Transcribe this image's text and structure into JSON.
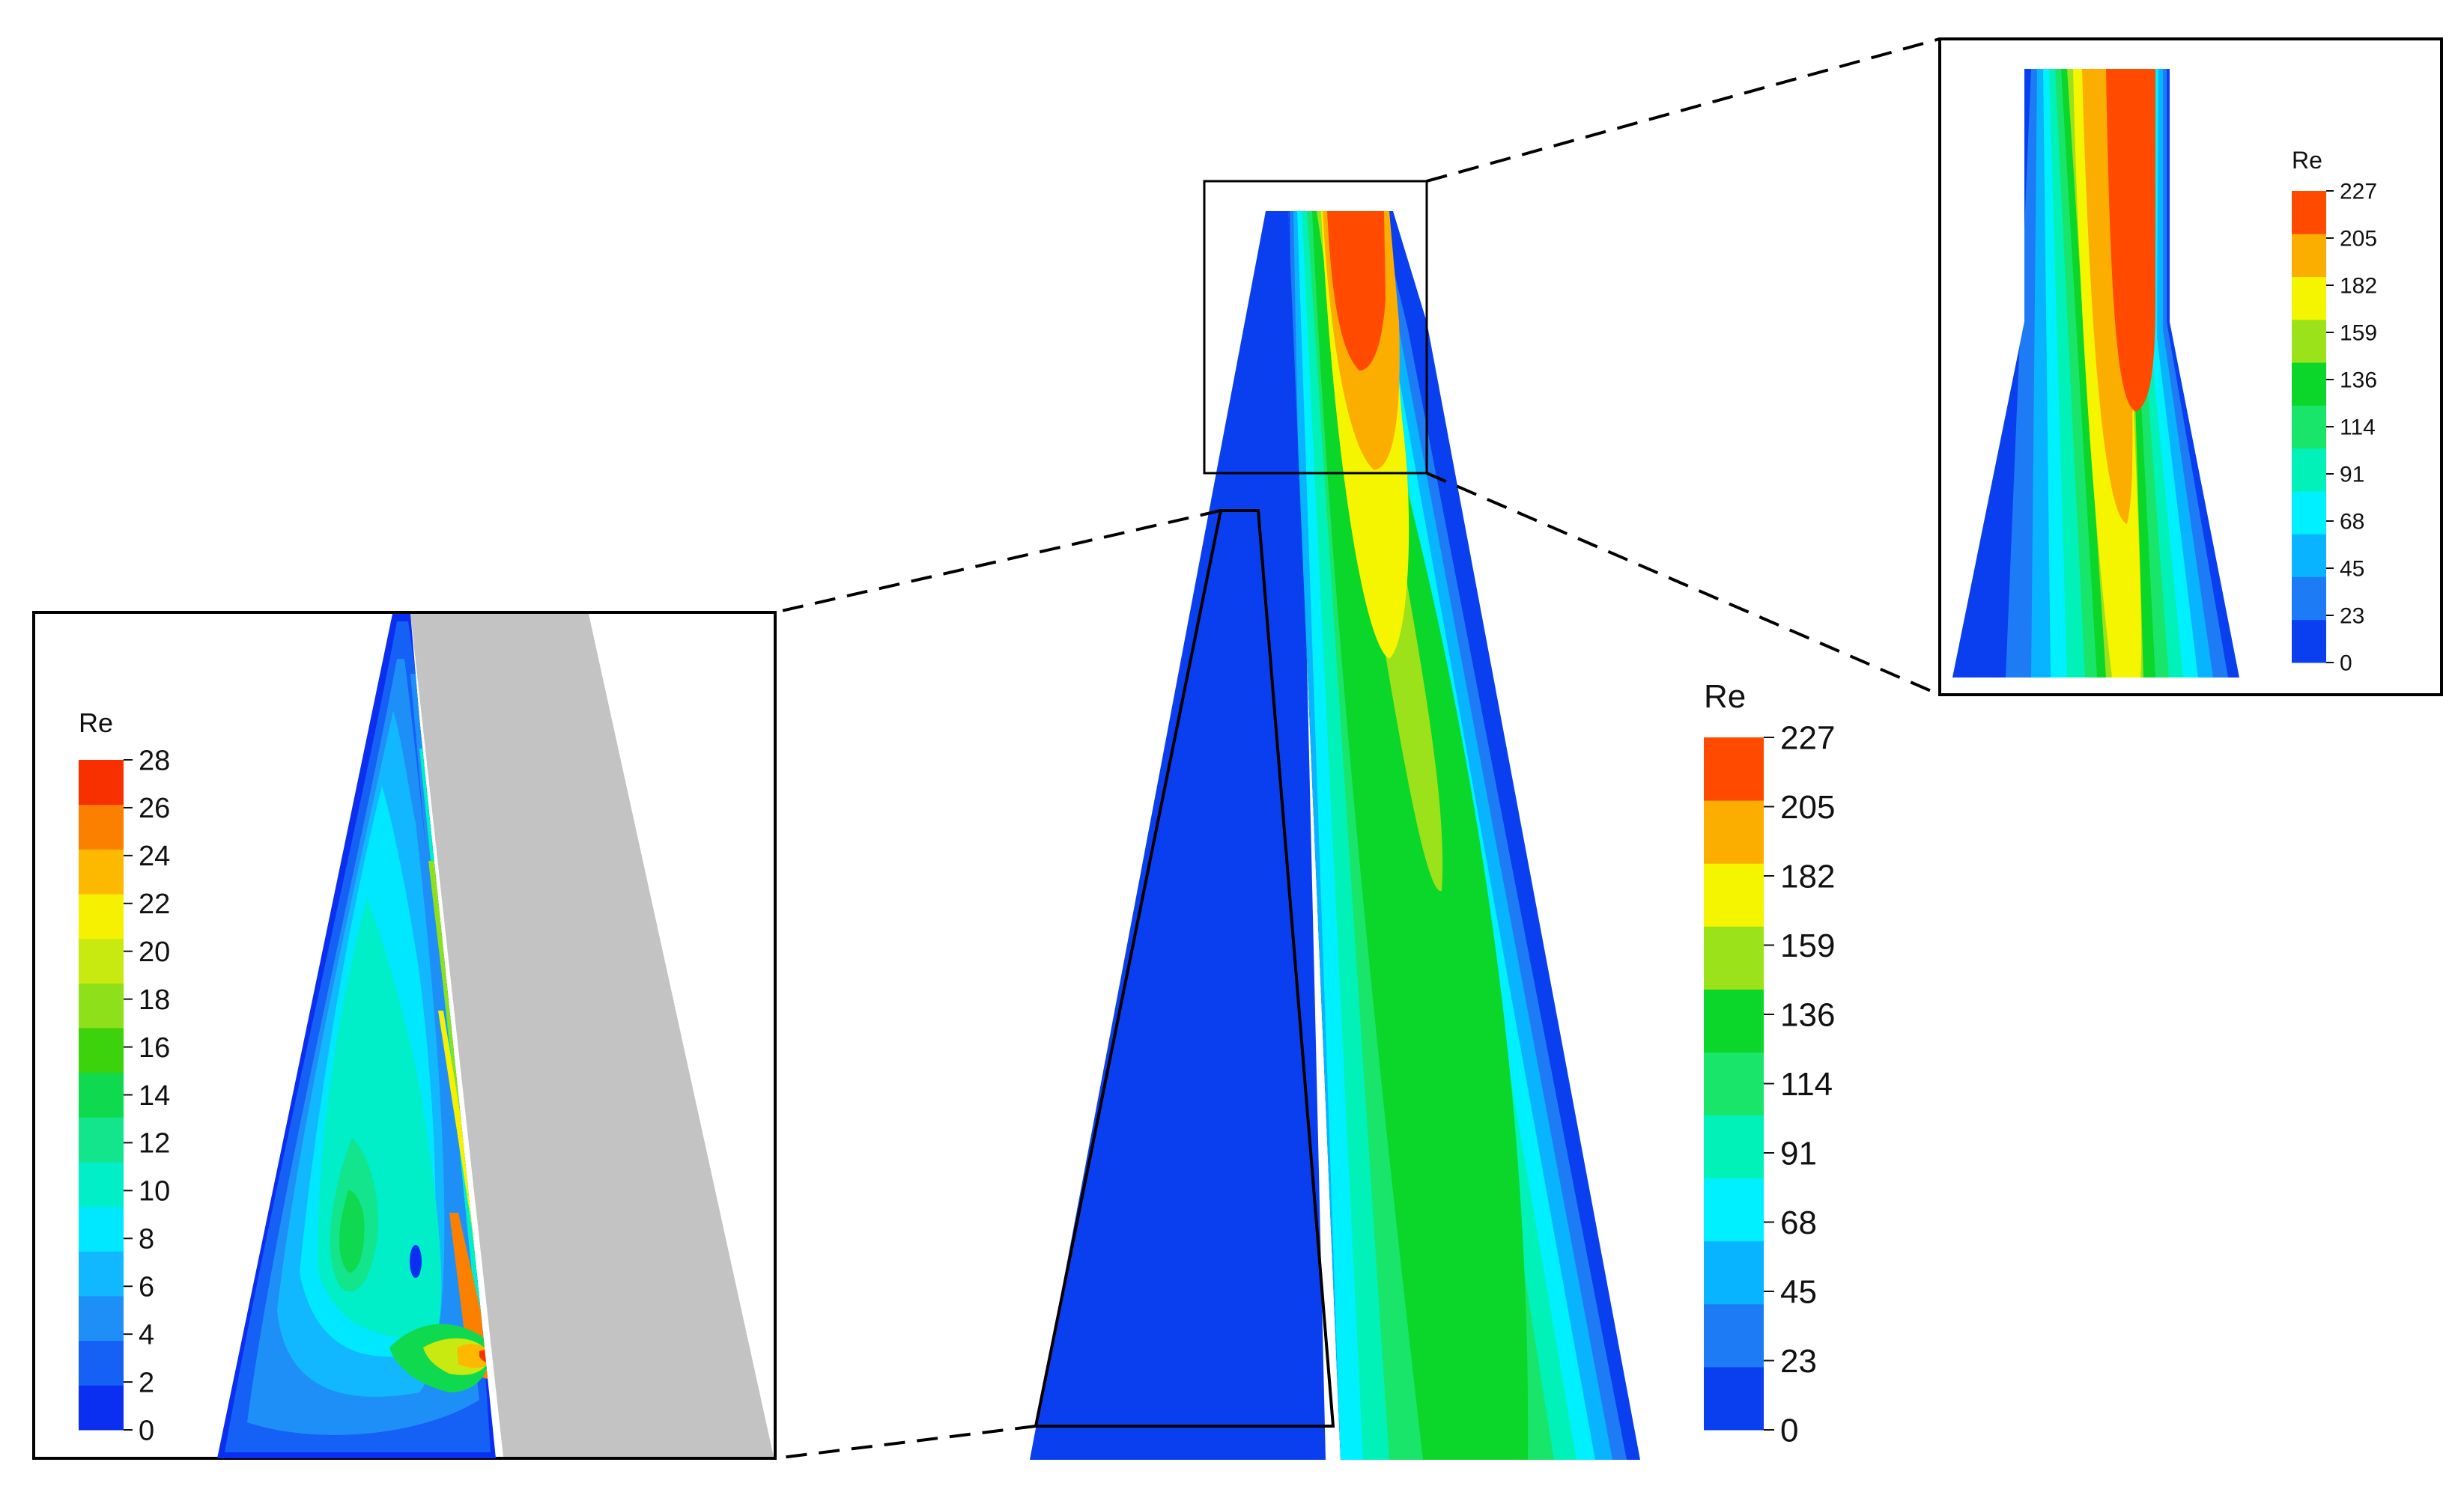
{
  "figure": {
    "variable_label": "Re",
    "main_legend": {
      "title": "Re",
      "ticks": [
        "0",
        "23",
        "45",
        "68",
        "91",
        "114",
        "136",
        "159",
        "182",
        "205",
        "227"
      ]
    },
    "zoom_top_legend": {
      "title": "Re",
      "ticks": [
        "0",
        "23",
        "45",
        "68",
        "91",
        "114",
        "136",
        "159",
        "182",
        "205",
        "227"
      ]
    },
    "zoom_left_legend": {
      "title": "Re",
      "ticks": [
        "0",
        "2",
        "4",
        "6",
        "8",
        "10",
        "12",
        "14",
        "16",
        "18",
        "20",
        "22",
        "24",
        "26",
        "28"
      ]
    }
  },
  "colors": {
    "scale_main": [
      "#0a3ff0",
      "#1e7bf6",
      "#08b3ff",
      "#00f0ff",
      "#00f2b8",
      "#19e56b",
      "#0bd62a",
      "#9be21a",
      "#f5f500",
      "#fbae00",
      "#ff4a00"
    ],
    "scale_left": [
      "#0a2ff0",
      "#1560f5",
      "#1f8ff8",
      "#12b8ff",
      "#00e8ff",
      "#00eec8",
      "#12e58c",
      "#0fd94f",
      "#3cd20c",
      "#8ee01b",
      "#c8ea10",
      "#f5f100",
      "#fcb900",
      "#fb8000",
      "#f83000"
    ],
    "wall_gray": "#c3c3c3",
    "frame": "#000000"
  }
}
